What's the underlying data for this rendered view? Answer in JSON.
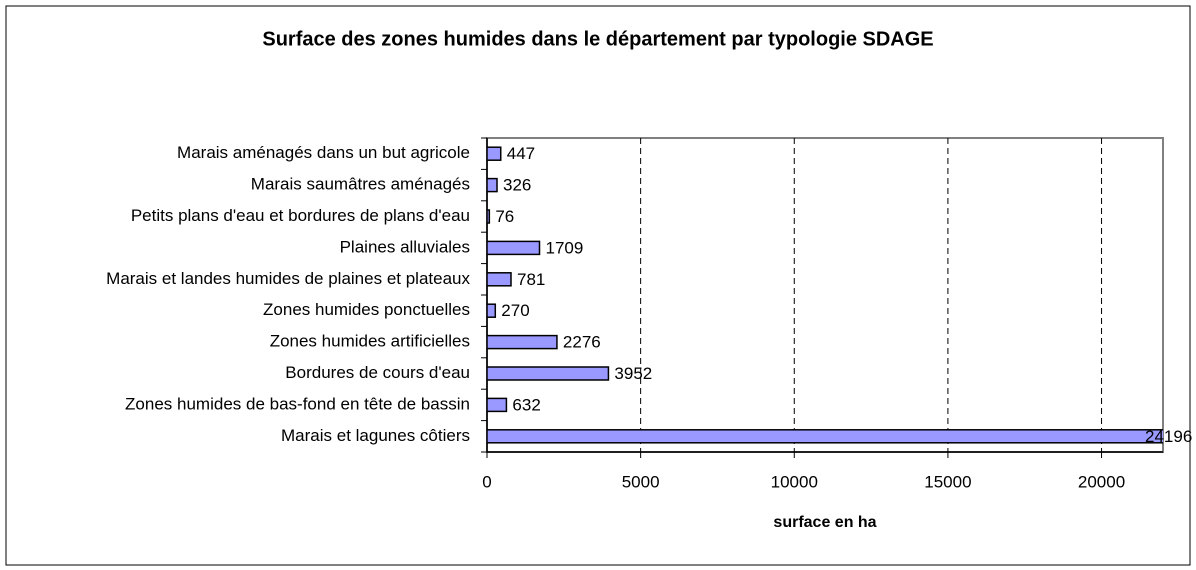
{
  "chart_data": {
    "type": "bar",
    "orientation": "horizontal",
    "title": "Surface des zones humides dans le département par typologie SDAGE",
    "x_label": "surface en ha",
    "categories": [
      "Marais aménagés dans un but agricole",
      "Marais saumâtres aménagés",
      "Petits plans d'eau et bordures de plans d'eau",
      "Plaines alluviales",
      "Marais et landes humides de plaines et plateaux",
      "Zones humides ponctuelles",
      "Zones humides artificielles",
      "Bordures de cours d'eau",
      "Zones humides de bas-fond en tête de bassin",
      "Marais et lagunes côtiers"
    ],
    "values": [
      447,
      326,
      76,
      1709,
      781,
      270,
      2276,
      3952,
      632,
      24196
    ],
    "color": "#9999ff",
    "xlim": [
      0,
      22000
    ],
    "xticks": [
      0,
      5000,
      10000,
      15000,
      20000
    ],
    "grid": true
  }
}
